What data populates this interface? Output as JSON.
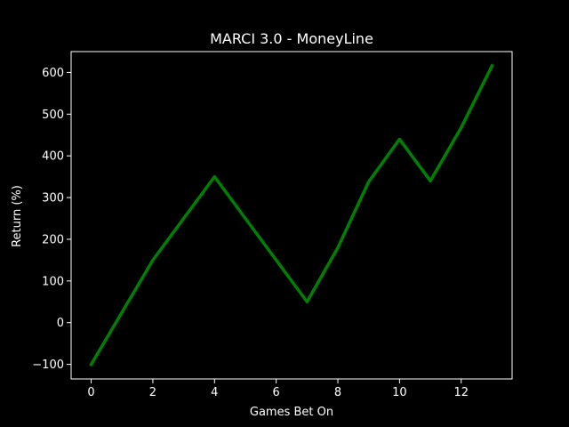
{
  "chart_data": {
    "type": "line",
    "title": "MARCI 3.0 - MoneyLine",
    "xlabel": "Games Bet On",
    "ylabel": "Return (%)",
    "xlim": [
      -0.65,
      13.65
    ],
    "ylim": [
      -135,
      650
    ],
    "xticks": [
      0,
      2,
      4,
      6,
      8,
      10,
      12
    ],
    "yticks": [
      -100,
      0,
      100,
      200,
      300,
      400,
      500,
      600
    ],
    "xtick_labels": [
      "0",
      "2",
      "4",
      "6",
      "8",
      "10",
      "12"
    ],
    "ytick_labels": [
      "−100",
      "0",
      "100",
      "200",
      "300",
      "400",
      "500",
      "600"
    ],
    "grid": false,
    "legend": false,
    "series": [
      {
        "color": "#008000",
        "x": [
          0,
          1,
          2,
          3,
          4,
          5,
          6,
          7,
          8,
          9,
          10,
          11,
          12,
          13
        ],
        "y": [
          -100,
          25,
          150,
          250,
          350,
          250,
          150,
          50,
          180,
          338,
          440,
          340,
          468,
          616
        ]
      }
    ],
    "colors": {
      "background": "#000000",
      "foreground": "#ffffff",
      "line": "#008000"
    }
  }
}
